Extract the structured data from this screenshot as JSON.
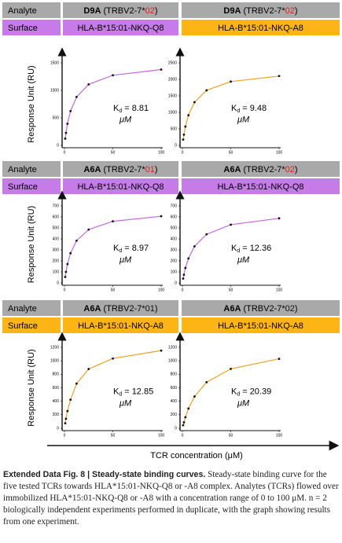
{
  "panels": [
    {
      "analyte_label": "Analyte",
      "surface_label": "Surface",
      "analytes": [
        {
          "name": "D9A",
          "gene": " (TRBV2-7*",
          "allele": "02",
          "close": ")",
          "allele_color": "#e02020"
        },
        {
          "name": "D9A",
          "gene": " (TRBV2-7*",
          "allele": "02",
          "close": ")",
          "allele_color": "#e02020"
        }
      ],
      "surfaces": [
        "HLA-B*15:01-NKQ-Q8",
        "HLA-B*15:01-NKQ-A8"
      ],
      "surface_colors": [
        "#c77be8",
        "#fdb515"
      ]
    },
    {
      "analyte_label": "Analyte",
      "surface_label": "Surface",
      "analytes": [
        {
          "name": "A6A",
          "gene": " (TRBV2-7*",
          "allele": "01",
          "close": ")",
          "allele_color": "#e02020"
        },
        {
          "name": "A6A",
          "gene": " (TRBV2-7*",
          "allele": "02",
          "close": ")",
          "allele_color": "#e02020"
        }
      ],
      "surfaces": [
        "HLA-B*15:01-NKQ-Q8",
        "HLA-B*15:01-NKQ-Q8"
      ],
      "surface_colors": [
        "#c77be8",
        "#c77be8"
      ]
    },
    {
      "analyte_label": "Analyte",
      "surface_label": "Surface",
      "analytes": [
        {
          "name": "A6A",
          "gene": " (TRBV2-7*",
          "allele": "01",
          "close": ")",
          "allele_color": "#111111"
        },
        {
          "name": "A6A",
          "gene": " (TRBV2-7*",
          "allele": "02",
          "close": ")",
          "allele_color": "#111111"
        }
      ],
      "surfaces": [
        "HLA-B*15:01-NKQ-A8",
        "HLA-B*15:01-NKQ-A8"
      ],
      "surface_colors": [
        "#fdb515",
        "#fdb515"
      ]
    }
  ],
  "y_label": "Response Unit (RU)",
  "x_label": "TCR concentration (μM)",
  "kd_symbol": "K",
  "kd_subscript": "d",
  "kd_equals": "=",
  "kd_unit": "μM",
  "chart_data": [
    {
      "type": "line",
      "x": [
        0.78,
        1.56,
        3.125,
        6.25,
        12.5,
        25,
        50,
        100
      ],
      "values": [
        122,
        226,
        393,
        623,
        880,
        1109,
        1275,
        1379
      ],
      "color": "#c466e6",
      "xlim": [
        0,
        100
      ],
      "xticks": [
        0,
        50,
        100
      ],
      "ylim": [
        0,
        1500
      ],
      "yticks": [
        0,
        500,
        1000,
        1500
      ],
      "kd": 8.81
    },
    {
      "type": "line",
      "x": [
        0.78,
        1.56,
        3.125,
        6.25,
        12.5,
        25,
        50,
        100
      ],
      "values": [
        175,
        325,
        570,
        914,
        1308,
        1668,
        1933,
        2101
      ],
      "color": "#f0a020",
      "xlim": [
        0,
        100
      ],
      "xticks": [
        0,
        50,
        100
      ],
      "ylim": [
        0,
        2500
      ],
      "yticks": [
        0,
        500,
        1000,
        1500,
        2000,
        2500
      ],
      "kd": 9.48
    },
    {
      "type": "line",
      "x": [
        0.78,
        1.56,
        3.125,
        6.25,
        12.5,
        25,
        50,
        100
      ],
      "values": [
        54,
        100,
        171,
        270,
        384,
        485,
        560,
        606
      ],
      "color": "#c466e6",
      "xlim": [
        0,
        100
      ],
      "xticks": [
        0,
        50,
        100
      ],
      "ylim": [
        0,
        700
      ],
      "yticks": [
        0,
        100,
        200,
        300,
        400,
        500,
        600,
        700
      ],
      "kd": 8.97
    },
    {
      "type": "line",
      "x": [
        0.78,
        1.56,
        3.125,
        6.25,
        12.5,
        25,
        50,
        100
      ],
      "values": [
        39,
        74,
        136,
        222,
        332,
        442,
        529,
        587
      ],
      "color": "#c466e6",
      "xlim": [
        0,
        100
      ],
      "xticks": [
        0,
        50,
        100
      ],
      "ylim": [
        0,
        700
      ],
      "yticks": [
        0,
        100,
        200,
        300,
        400,
        500,
        600,
        700
      ],
      "kd": 12.36
    },
    {
      "type": "line",
      "x": [
        0.78,
        1.56,
        3.125,
        6.25,
        12.5,
        25,
        50,
        100
      ],
      "values": [
        74,
        141,
        255,
        424,
        662,
        879,
        1034,
        1152
      ],
      "color": "#f0a020",
      "xlim": [
        0,
        100
      ],
      "xticks": [
        0,
        50,
        100
      ],
      "ylim": [
        0,
        1200
      ],
      "yticks": [
        0,
        200,
        400,
        600,
        800,
        1000,
        1200
      ],
      "kd": 12.85
    },
    {
      "type": "line",
      "x": [
        0.78,
        1.56,
        3.125,
        6.25,
        12.5,
        25,
        50,
        100
      ],
      "values": [
        45,
        88,
        164,
        292,
        471,
        683,
        881,
        1030
      ],
      "color": "#f0a020",
      "xlim": [
        0,
        100
      ],
      "xticks": [
        0,
        50,
        100
      ],
      "ylim": [
        0,
        1200
      ],
      "yticks": [
        0,
        200,
        400,
        600,
        800,
        1000,
        1200
      ],
      "kd": 20.39
    }
  ],
  "caption": {
    "bold": "Extended Data Fig. 8 | Steady-state binding curves.",
    "text": " Steady-state binding curve for the five tested TCRs towards HLA*15:01-NKQ-Q8 or -A8 complex. Analytes (TCRs) flowed over immobilized HLA*15:01-NKQ-Q8 or -A8 with a concentration range of 0 to 100 μM. n = 2 biologically independent experiments performed in duplicate, with the graph showing results from one experiment."
  }
}
